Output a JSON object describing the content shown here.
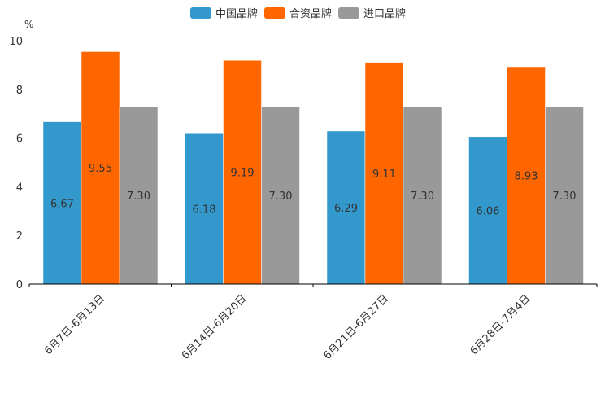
{
  "chart_data": {
    "type": "bar",
    "title": "",
    "unit_label": "%",
    "xlabel": "",
    "ylabel": "%",
    "categories": [
      "6月7日-6月13日",
      "6月14日-6月20日",
      "6月21日-6月27日",
      "6月28日-7月4日"
    ],
    "series": [
      {
        "name": "中国品牌",
        "color": "#3399cc",
        "values": [
          6.67,
          6.18,
          6.29,
          6.06
        ],
        "labels": [
          "6.67",
          "6.18",
          "6.29",
          "6.06"
        ]
      },
      {
        "name": "合资品牌",
        "color": "#ff6600",
        "values": [
          9.55,
          9.19,
          9.11,
          8.93
        ],
        "labels": [
          "9.55",
          "9.19",
          "9.11",
          "8.93"
        ]
      },
      {
        "name": "进口品牌",
        "color": "#999999",
        "values": [
          7.3,
          7.3,
          7.3,
          7.3
        ],
        "labels": [
          "7.30",
          "7.30",
          "7.30",
          "7.30"
        ]
      }
    ],
    "ylim": [
      0,
      10
    ],
    "yticks": [
      0,
      2,
      4,
      6,
      8,
      10
    ],
    "ytick_labels": [
      "0",
      "2",
      "4",
      "6",
      "8",
      "10"
    ],
    "grid": false,
    "legend_position": "top-center"
  }
}
